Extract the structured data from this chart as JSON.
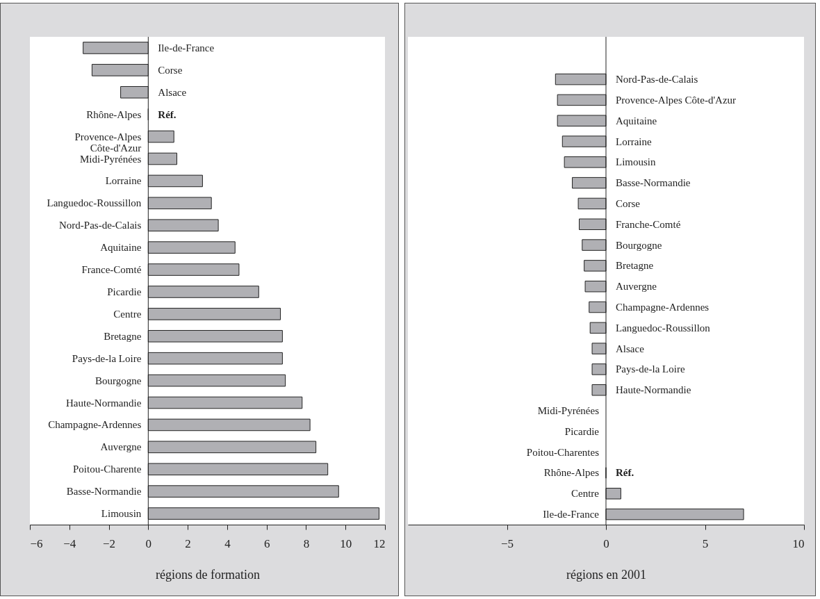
{
  "chart_data": [
    {
      "type": "bar",
      "orientation": "horizontal",
      "xlabel": "régions de formation",
      "color": "#b0b0b4",
      "xlim": [
        -6,
        12
      ],
      "xticks": [
        -6,
        -4,
        -2,
        0,
        2,
        4,
        6,
        8,
        10,
        12
      ],
      "categories": [
        "Ile-de-France",
        "Corse",
        "Alsace",
        "Rhône-Alpes",
        "Provence-Alpes\nCôte-d'Azur",
        "Midi-Pyrénées",
        "Lorraine",
        "Languedoc-Roussillon",
        "Nord-Pas-de-Calais",
        "Aquitaine",
        "France-Comté",
        "Picardie",
        "Centre",
        "Bretagne",
        "Pays-de-la Loire",
        "Bourgogne",
        "Haute-Normandie",
        "Champagne-Ardennes",
        "Auvergne",
        "Poitou-Charente",
        "Basse-Normandie",
        "Limousin"
      ],
      "values": [
        -3.3,
        -2.85,
        -1.4,
        0,
        1.3,
        1.45,
        2.75,
        3.2,
        3.55,
        4.4,
        4.6,
        5.6,
        6.7,
        6.8,
        6.8,
        6.95,
        7.8,
        8.2,
        8.5,
        9.1,
        9.65,
        11.7
      ],
      "annotations": [
        {
          "text": "Réf.",
          "x": 0,
          "y": "Rhône-Alpes"
        }
      ]
    },
    {
      "type": "bar",
      "orientation": "horizontal",
      "xlabel": "régions en 2001",
      "color": "#b0b0b4",
      "xlim": [
        -10,
        10
      ],
      "xticks": [
        -5,
        0,
        5,
        10
      ],
      "categories": [
        "Nord-Pas-de-Calais",
        "Provence-Alpes Côte-d'Azur",
        "Aquitaine",
        "Lorraine",
        "Limousin",
        "Basse-Normandie",
        "Corse",
        "Franche-Comté",
        "Bourgogne",
        "Bretagne",
        "Auvergne",
        "Champagne-Ardennes",
        "Languedoc-Roussillon",
        "Alsace",
        "Pays-de-la Loire",
        "Haute-Normandie",
        "Midi-Pyrénées",
        "Picardie",
        "Poitou-Charentes",
        "Rhône-Alpes",
        "Centre",
        "Ile-de-France"
      ],
      "values": [
        -2.55,
        -2.45,
        -2.45,
        -2.2,
        -2.1,
        -1.7,
        -1.4,
        -1.35,
        -1.2,
        -1.1,
        -1.05,
        -0.85,
        -0.8,
        -0.7,
        -0.7,
        -0.7,
        null,
        null,
        null,
        0,
        0.75,
        6.95
      ],
      "annotations": [
        {
          "text": "Réf.",
          "x": 0,
          "y": "Rhône-Alpes"
        }
      ]
    }
  ]
}
